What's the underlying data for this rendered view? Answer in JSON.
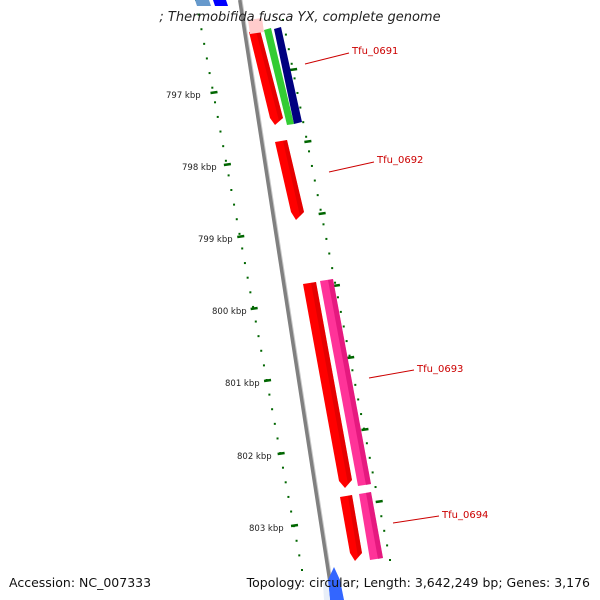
{
  "title": "; Thermobifida fusca YX, complete genome",
  "footer": {
    "accession": "Accession: NC_007333",
    "summary": "Topology: circular; Length: 3,642,249 bp; Genes: 3,176"
  },
  "ticks": [
    "797 kbp",
    "798 kbp",
    "799 kbp",
    "800 kbp",
    "801 kbp",
    "802 kbp",
    "803 kbp"
  ],
  "genes": [
    "Tfu_0691",
    "Tfu_0692",
    "Tfu_0693",
    "Tfu_0694"
  ],
  "colors": {
    "backbone": "#808080",
    "cds": "#ff0000",
    "rna": "#ff3399",
    "blast_green": "#33cc33",
    "blast_navy": "#000080",
    "blue": "#0000ff",
    "ruler": "#006600",
    "label": "#cc0000"
  }
}
